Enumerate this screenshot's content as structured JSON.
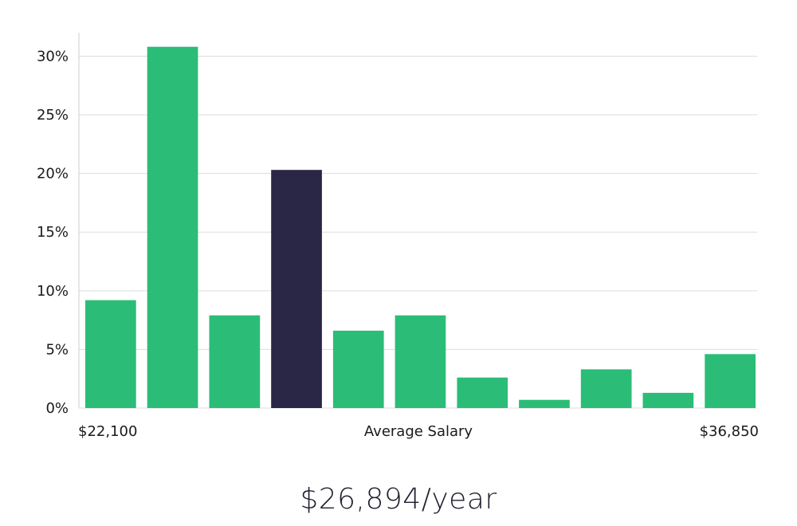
{
  "chart_data": {
    "type": "bar",
    "title": "",
    "xlabel": "Average Salary",
    "ylabel": "",
    "x_range_labels": {
      "min": "$22,100",
      "max": "$36,850"
    },
    "ylim": [
      0,
      32
    ],
    "yticks": [
      0,
      5,
      10,
      15,
      20,
      25,
      30
    ],
    "ytick_labels": [
      "0%",
      "5%",
      "10%",
      "15%",
      "20%",
      "25%",
      "30%"
    ],
    "values": [
      9.2,
      30.8,
      7.9,
      20.3,
      6.6,
      7.9,
      2.6,
      0.7,
      3.3,
      1.3,
      4.6
    ],
    "highlight_index": 3,
    "colors": {
      "bar": "#2bbd77",
      "highlight": "#2a2646",
      "grid": "#dddddd",
      "axis": "#cccccc"
    },
    "grid": true
  },
  "summary": {
    "salary": "$26,894/year"
  }
}
